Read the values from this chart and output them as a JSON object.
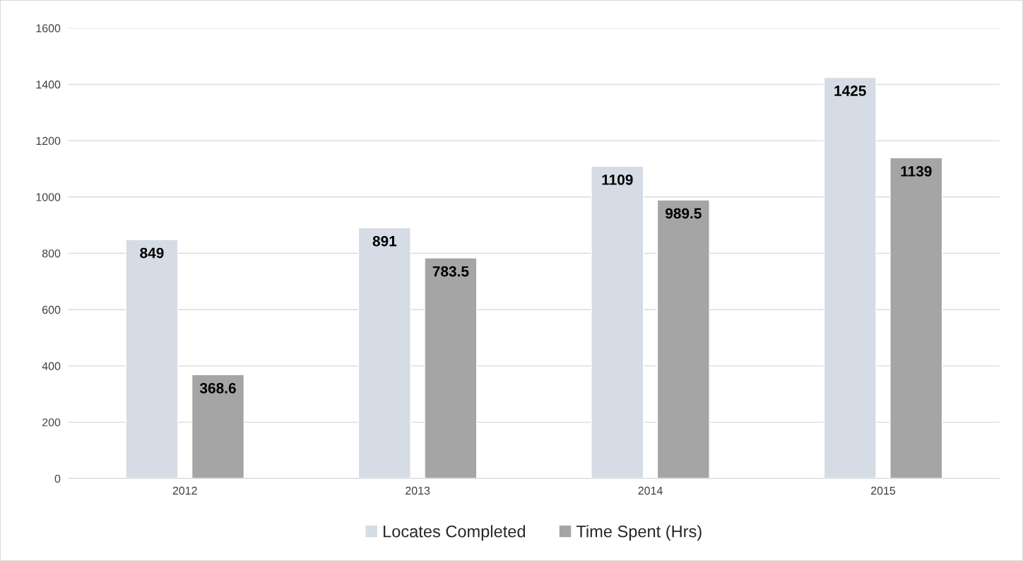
{
  "chart_data": {
    "type": "bar",
    "categories": [
      "2012",
      "2013",
      "2014",
      "2015"
    ],
    "series": [
      {
        "name": "Locates Completed",
        "color": "#d6dce5",
        "values": [
          849,
          891,
          1109,
          1425
        ]
      },
      {
        "name": "Time Spent (Hrs)",
        "color": "#a5a5a5",
        "values": [
          368.6,
          783.5,
          989.5,
          1139
        ]
      }
    ],
    "ylim": [
      0,
      1600
    ],
    "yticks": [
      0,
      200,
      400,
      600,
      800,
      1000,
      1200,
      1400,
      1600
    ],
    "grid": "y",
    "legend": "bottom",
    "data_labels": true
  }
}
